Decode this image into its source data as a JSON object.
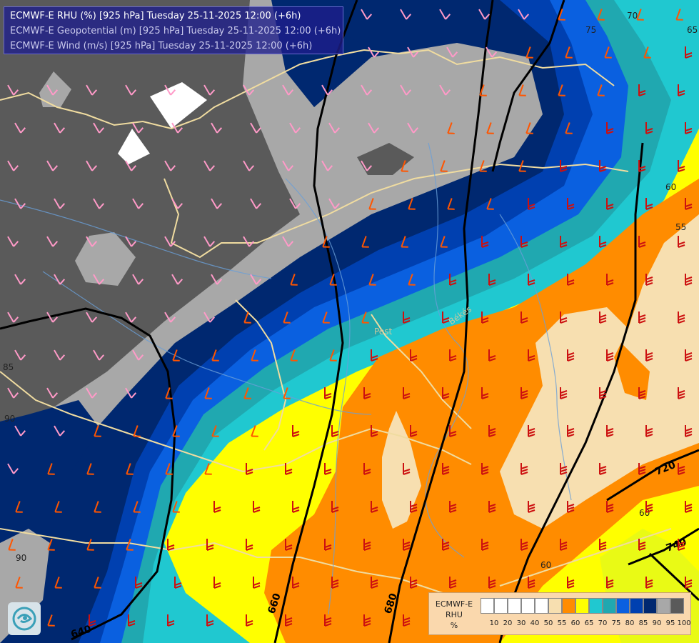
{
  "header": {
    "lines": [
      "ECMWF-E RHU (%) [925 hPa] Tuesday 25-11-2025 12:00 (+6h)",
      "ECMWF-E Geopotential (m) [925 hPa] Tuesday 25-11-2025 12:00 (+6h)",
      "ECMWF-E Wind (m/s) [925 hPa] Tuesday 25-11-2025 12:00 (+6h)"
    ]
  },
  "legend": {
    "title": [
      "ECMWF-E",
      "RHU",
      "%"
    ],
    "colors": [
      "#ffffff",
      "#ffffff",
      "#ffffff",
      "#ffffff",
      "#ffffff",
      "#f7dfb0",
      "#ff8c00",
      "#ffff00",
      "#20c8d0",
      "#20a8b0",
      "#0a60e0",
      "#0040b0",
      "#002870",
      "#a8a8a8",
      "#5a5a5a"
    ],
    "ticks": [
      "10",
      "20",
      "30",
      "40",
      "50",
      "55",
      "60",
      "65",
      "70",
      "75",
      "80",
      "85",
      "90",
      "95",
      "100"
    ]
  },
  "geopotential_labels": [
    "640",
    "660",
    "680",
    "720",
    "740"
  ],
  "rhu_labels": [
    "70",
    "75",
    "65",
    "60",
    "55",
    "60",
    "60",
    "90",
    "90",
    "85"
  ],
  "place_labels": [
    "Pest",
    "Békés"
  ],
  "colors": {
    "rhu100": "#5a5a5a",
    "rhu95": "#a8a8a8",
    "rhu90": "#002870",
    "rhu85": "#0040b0",
    "rhu80": "#0a60e0",
    "rhu75": "#20a8b0",
    "rhu70": "#20c8d0",
    "rhu65": "#ffff00",
    "rhu60": "#ff8c00",
    "rhu55": "#f7dfb0",
    "geopotential_line": "#000000",
    "border": "#f0dca0",
    "river": "#6a9fd8",
    "wind_barb_strong": "#cc1010",
    "wind_barb_medium": "#ff5500",
    "wind_barb_light": "#ff9ac8"
  }
}
